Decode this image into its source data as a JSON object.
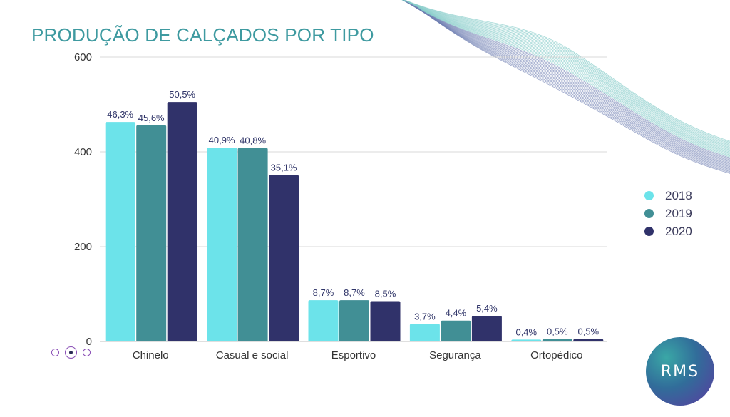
{
  "chart_data": {
    "type": "bar",
    "title": "PRODUÇÃO DE CALÇADOS POR TIPO",
    "categories": [
      "Chinelo",
      "Casual e social",
      "Esportivo",
      "Segurança",
      "Ortopédico"
    ],
    "series": [
      {
        "name": "2018",
        "color": "#6ce3ea",
        "values": [
          463,
          409,
          87,
          37,
          4
        ],
        "labels": [
          "46,3%",
          "40,9%",
          "8,7%",
          "3,7%",
          "0,4%"
        ]
      },
      {
        "name": "2019",
        "color": "#418f95",
        "values": [
          456,
          408,
          87,
          44,
          5
        ],
        "labels": [
          "45,6%",
          "40,8%",
          "8,7%",
          "4,4%",
          "0,5%"
        ]
      },
      {
        "name": "2020",
        "color": "#30326a",
        "values": [
          505,
          351,
          85,
          54,
          5
        ],
        "labels": [
          "50,5%",
          "35,1%",
          "8,5%",
          "5,4%",
          "0,5%"
        ]
      }
    ],
    "ylim": [
      0,
      600
    ],
    "yticks": [
      0,
      200,
      400,
      600
    ],
    "grid": true,
    "legend_position": "right",
    "xlabel": "",
    "ylabel": ""
  },
  "legend": {
    "items": [
      "2018",
      "2019",
      "2020"
    ]
  },
  "logo": {
    "text": "RMS"
  },
  "pager": {
    "count": 3,
    "active": 1
  }
}
